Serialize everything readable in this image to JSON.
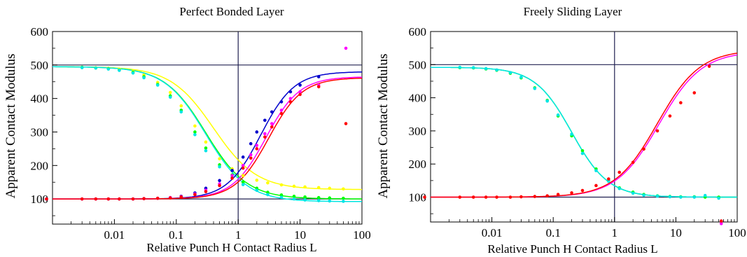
{
  "chart_data": [
    {
      "type": "scatter",
      "title": "Perfect Bonded Layer",
      "xlabel": "Relative Punch H Contact Radius L",
      "ylabel": "Apparent Contact Modulus",
      "xscale": "log",
      "xlim": [
        0.001,
        100
      ],
      "ylim": [
        25,
        600
      ],
      "xticks": [
        {
          "value": 0.01,
          "label": "0.01"
        },
        {
          "value": 0.1,
          "label": "0.1"
        },
        {
          "value": 1,
          "label": "1"
        },
        {
          "value": 10,
          "label": "10"
        },
        {
          "value": 100,
          "label": "100"
        }
      ],
      "yticks": [
        {
          "value": 100,
          "label": "100"
        },
        {
          "value": 200,
          "label": "200"
        },
        {
          "value": 300,
          "label": "300"
        },
        {
          "value": 400,
          "label": "400"
        },
        {
          "value": 500,
          "label": "500"
        },
        {
          "value": 600,
          "label": "600"
        }
      ],
      "hlines": [
        500,
        100
      ],
      "vlines": [
        1
      ],
      "grid": false,
      "series": [
        {
          "color": "#ffff00",
          "fit": {
            "low": 128,
            "high": 495,
            "x0": 0.4,
            "n": 1.25,
            "dir": "decreasing"
          },
          "x": [
            0.003,
            0.005,
            0.008,
            0.012,
            0.02,
            0.03,
            0.05,
            0.08,
            0.12,
            0.2,
            0.3,
            0.5,
            0.8,
            1.2,
            2,
            3,
            5,
            8,
            12,
            20,
            30,
            50
          ],
          "y": [
            493,
            492,
            490,
            487,
            480,
            470,
            448,
            418,
            378,
            318,
            270,
            220,
            190,
            170,
            156,
            148,
            142,
            138,
            136,
            134,
            132,
            130
          ]
        },
        {
          "color": "#00ff00",
          "fit": {
            "low": 100,
            "high": 495,
            "x0": 0.3,
            "n": 1.3,
            "dir": "decreasing"
          },
          "x": [
            0.003,
            0.005,
            0.008,
            0.012,
            0.02,
            0.03,
            0.05,
            0.08,
            0.12,
            0.2,
            0.3,
            0.5,
            0.8,
            1.2,
            2,
            3,
            5,
            8,
            12,
            20,
            30,
            50
          ],
          "y": [
            493,
            491,
            489,
            485,
            478,
            465,
            442,
            408,
            365,
            300,
            252,
            202,
            172,
            150,
            132,
            120,
            112,
            108,
            106,
            104,
            103,
            102
          ]
        },
        {
          "color": "#00e5e5",
          "fit": {
            "low": 92,
            "high": 495,
            "x0": 0.3,
            "n": 1.3,
            "dir": "decreasing"
          },
          "x": [
            0.003,
            0.005,
            0.008,
            0.012,
            0.02,
            0.03,
            0.05,
            0.08,
            0.12,
            0.2,
            0.3,
            0.5,
            0.8,
            1.2,
            2,
            3,
            5,
            8,
            12,
            20,
            30,
            50
          ],
          "y": [
            492,
            491,
            488,
            484,
            476,
            462,
            440,
            404,
            360,
            292,
            244,
            196,
            165,
            143,
            126,
            113,
            105,
            100,
            97,
            95,
            94,
            93
          ]
        },
        {
          "color": "#0000cc",
          "fit": {
            "low": 100,
            "high": 480,
            "x0": 2.3,
            "n": 1.6,
            "dir": "increasing"
          },
          "x": [
            0.0008,
            0.003,
            0.005,
            0.008,
            0.012,
            0.02,
            0.03,
            0.05,
            0.08,
            0.12,
            0.2,
            0.3,
            0.5,
            0.8,
            1.2,
            1.6,
            2,
            2.7,
            3.5,
            5,
            7,
            10,
            20
          ],
          "y": [
            100,
            100,
            100,
            100,
            100,
            100,
            101,
            102,
            104,
            108,
            118,
            132,
            155,
            185,
            225,
            265,
            300,
            335,
            360,
            390,
            420,
            440,
            465
          ]
        },
        {
          "color": "#ff00ff",
          "fit": {
            "low": 100,
            "high": 465,
            "x0": 2.8,
            "n": 1.6,
            "dir": "increasing"
          },
          "x": [
            0.0008,
            0.003,
            0.005,
            0.008,
            0.012,
            0.02,
            0.03,
            0.05,
            0.08,
            0.12,
            0.2,
            0.3,
            0.5,
            0.8,
            1.2,
            1.6,
            2,
            2.7,
            3.5,
            5,
            7,
            10,
            20,
            55
          ],
          "y": [
            100,
            100,
            100,
            100,
            100,
            100,
            101,
            102,
            104,
            107,
            115,
            126,
            145,
            170,
            200,
            232,
            260,
            295,
            325,
            365,
            400,
            420,
            440,
            550
          ]
        },
        {
          "color": "#ff0000",
          "fit": {
            "low": 100,
            "high": 462,
            "x0": 3.1,
            "n": 1.6,
            "dir": "increasing"
          },
          "x": [
            0.0008,
            0.003,
            0.005,
            0.008,
            0.012,
            0.02,
            0.03,
            0.05,
            0.08,
            0.12,
            0.2,
            0.3,
            0.5,
            0.8,
            1.2,
            1.6,
            2,
            2.7,
            3.5,
            5,
            7,
            10,
            20,
            55
          ],
          "y": [
            100,
            100,
            100,
            100,
            100,
            100,
            101,
            102,
            103,
            106,
            113,
            122,
            140,
            162,
            192,
            222,
            250,
            285,
            315,
            355,
            390,
            412,
            435,
            325
          ]
        }
      ]
    },
    {
      "type": "scatter",
      "title": "Freely Sliding Layer",
      "xlabel": "Relative Punch H Contact Radius L",
      "ylabel": "Apparent Contact Modulus",
      "xscale": "log",
      "xlim": [
        0.001,
        100
      ],
      "ylim": [
        25,
        600
      ],
      "xticks": [
        {
          "value": 0.01,
          "label": "0.01"
        },
        {
          "value": 0.1,
          "label": "0.1"
        },
        {
          "value": 1,
          "label": "1"
        },
        {
          "value": 10,
          "label": "10"
        },
        {
          "value": 100,
          "label": "100"
        }
      ],
      "yticks": [
        {
          "value": 100,
          "label": "100"
        },
        {
          "value": 200,
          "label": "200"
        },
        {
          "value": 300,
          "label": "300"
        },
        {
          "value": 400,
          "label": "400"
        },
        {
          "value": 500,
          "label": "500"
        },
        {
          "value": 600,
          "label": "600"
        }
      ],
      "hlines": [
        500,
        100
      ],
      "vlines": [
        1
      ],
      "grid": false,
      "series": [
        {
          "color": "#00ff00",
          "fit": {
            "low": 100,
            "high": 492,
            "x0": 0.2,
            "n": 1.45,
            "dir": "decreasing"
          },
          "x": [
            0.003,
            0.005,
            0.008,
            0.012,
            0.02,
            0.03,
            0.05,
            0.08,
            0.12,
            0.2,
            0.3,
            0.5,
            0.8,
            1.2,
            2,
            3,
            5,
            8,
            12,
            20,
            30,
            50
          ],
          "y": [
            491,
            490,
            487,
            483,
            474,
            460,
            430,
            392,
            345,
            285,
            240,
            185,
            150,
            128,
            115,
            108,
            104,
            102,
            101,
            101,
            100,
            100
          ]
        },
        {
          "color": "#00e5e5",
          "fit": {
            "low": 100,
            "high": 492,
            "x0": 0.2,
            "n": 1.45,
            "dir": "decreasing"
          },
          "x": [
            0.003,
            0.005,
            0.008,
            0.012,
            0.02,
            0.03,
            0.05,
            0.08,
            0.12,
            0.2,
            0.3,
            0.5,
            0.8,
            1.2,
            2,
            3,
            5,
            8,
            12,
            20,
            30,
            50
          ],
          "y": [
            492,
            491,
            488,
            484,
            476,
            462,
            428,
            390,
            348,
            290,
            232,
            180,
            148,
            126,
            112,
            106,
            103,
            101,
            100,
            100,
            105,
            97
          ]
        },
        {
          "color": "#ff00ff",
          "fit": {
            "low": 100,
            "high": 540,
            "x0": 5.3,
            "n": 1.25,
            "dir": "increasing"
          },
          "x": [
            55
          ],
          "y": [
            20
          ]
        },
        {
          "color": "#ff0000",
          "fit": {
            "low": 100,
            "high": 545,
            "x0": 5.0,
            "n": 1.25,
            "dir": "increasing"
          },
          "x": [
            0.0008,
            0.003,
            0.005,
            0.008,
            0.012,
            0.02,
            0.03,
            0.05,
            0.08,
            0.12,
            0.2,
            0.3,
            0.5,
            0.8,
            1.2,
            2,
            3,
            5,
            8,
            12,
            20,
            35,
            55
          ],
          "y": [
            100,
            100,
            100,
            100,
            100,
            100,
            101,
            102,
            104,
            108,
            113,
            120,
            135,
            155,
            175,
            205,
            245,
            300,
            345,
            385,
            415,
            495,
            28
          ]
        }
      ]
    }
  ]
}
